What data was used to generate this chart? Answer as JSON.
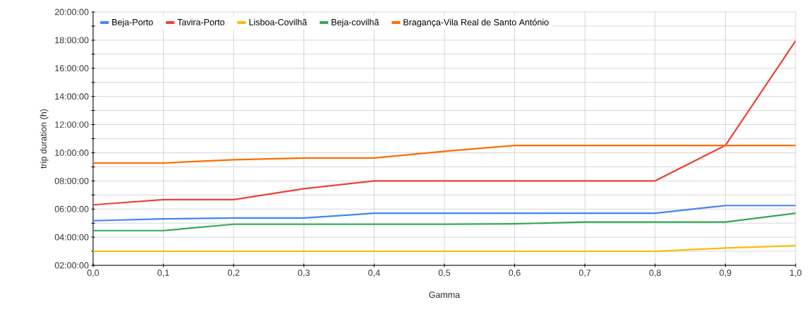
{
  "chart_data": {
    "type": "line",
    "xlabel": "Gamma",
    "ylabel": "trip duration (h)",
    "x": [
      0,
      0.1,
      0.2,
      0.3,
      0.4,
      0.5,
      0.6,
      0.7,
      0.8,
      0.9,
      1.0
    ],
    "series": [
      {
        "name": "Beja-Porto",
        "color": "#4285f4",
        "values": [
          5.17,
          5.3,
          5.37,
          5.37,
          5.7,
          5.7,
          5.7,
          5.7,
          5.7,
          6.25,
          6.25
        ]
      },
      {
        "name": "Tavira-Porto",
        "color": "#ea4335",
        "values": [
          6.3,
          6.67,
          6.67,
          7.45,
          8.0,
          8.0,
          8.0,
          8.0,
          8.0,
          10.52,
          17.95
        ]
      },
      {
        "name": "Lisboa-Covilhã",
        "color": "#fbbc04",
        "values": [
          3.0,
          3.0,
          3.0,
          3.0,
          3.0,
          3.0,
          3.0,
          3.0,
          3.0,
          3.23,
          3.4
        ]
      },
      {
        "name": "Beja-covilhã",
        "color": "#34a853",
        "values": [
          4.47,
          4.47,
          4.92,
          4.92,
          4.92,
          4.92,
          4.95,
          5.08,
          5.08,
          5.08,
          5.7
        ]
      },
      {
        "name": "Bragança-Vila Real de Santo António",
        "color": "#ff6d01",
        "values": [
          9.27,
          9.27,
          9.5,
          9.63,
          9.63,
          10.1,
          10.52,
          10.52,
          10.52,
          10.52,
          10.52
        ]
      }
    ],
    "xlim": [
      0,
      1
    ],
    "xticks": [
      {
        "value": 0,
        "label": "0,0"
      },
      {
        "value": 0.1,
        "label": "0,1"
      },
      {
        "value": 0.2,
        "label": "0,2"
      },
      {
        "value": 0.3,
        "label": "0,3"
      },
      {
        "value": 0.4,
        "label": "0,4"
      },
      {
        "value": 0.5,
        "label": "0,5"
      },
      {
        "value": 0.6,
        "label": "0,6"
      },
      {
        "value": 0.7,
        "label": "0,7"
      },
      {
        "value": 0.8,
        "label": "0,8"
      },
      {
        "value": 0.9,
        "label": "0,9"
      },
      {
        "value": 1.0,
        "label": "1,0"
      }
    ],
    "ylim": [
      2,
      20
    ],
    "yticks": [
      {
        "value": 2,
        "label": "02:00:00"
      },
      {
        "value": 3,
        "label": null
      },
      {
        "value": 4,
        "label": "04:00:00"
      },
      {
        "value": 5,
        "label": null
      },
      {
        "value": 6,
        "label": "06:00:00"
      },
      {
        "value": 7,
        "label": null
      },
      {
        "value": 8,
        "label": "08:00:00"
      },
      {
        "value": 9,
        "label": null
      },
      {
        "value": 10,
        "label": "10:00:00"
      },
      {
        "value": 11,
        "label": null
      },
      {
        "value": 12,
        "label": "12:00:00"
      },
      {
        "value": 13,
        "label": null
      },
      {
        "value": 14,
        "label": "14:00:00"
      },
      {
        "value": 15,
        "label": null
      },
      {
        "value": 16,
        "label": "16:00:00"
      },
      {
        "value": 17,
        "label": null
      },
      {
        "value": 18,
        "label": "18:00:00"
      },
      {
        "value": 19,
        "label": null
      },
      {
        "value": 20,
        "label": "20:00:00"
      }
    ],
    "grid": true,
    "legend": "top"
  }
}
